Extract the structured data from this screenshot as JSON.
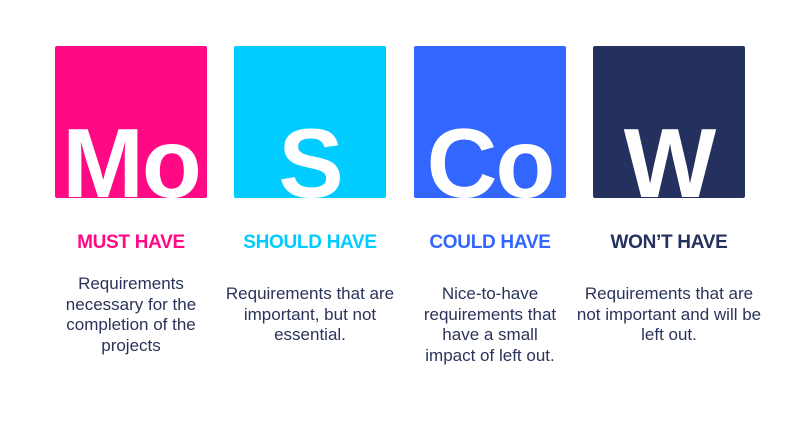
{
  "items": [
    {
      "letters": "Mo",
      "title": "MUST HAVE",
      "description": "Requirements necessary for the completion of the projects",
      "color": "#ff0a84"
    },
    {
      "letters": "S",
      "title": "SHOULD HAVE",
      "description": "Requirements that are important, but not essential.",
      "color": "#00ccff"
    },
    {
      "letters": "Co",
      "title": "COULD HAVE",
      "description": "Nice-to-have requirements that have a small impact of left out.",
      "color": "#3366ff"
    },
    {
      "letters": "W",
      "title": "WON’T HAVE",
      "description": "Requirements that are not important and will be left out.",
      "color": "#24305e"
    }
  ]
}
